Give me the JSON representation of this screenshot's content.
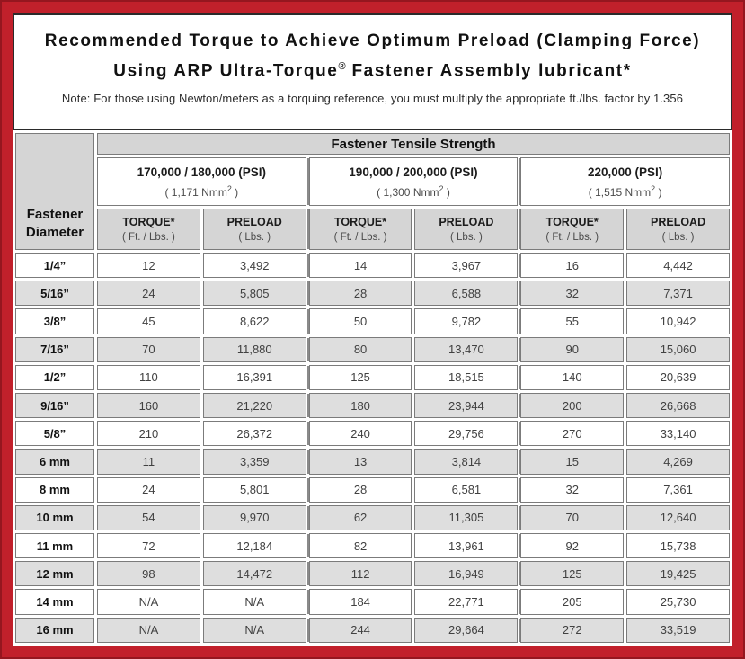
{
  "colors": {
    "frame_red": "#C1202B",
    "header_gray": "#D5D5D5",
    "row_alt_gray": "#DEDEDE",
    "cell_border_gray": "#7B7B7B",
    "title_text": "#111111"
  },
  "title": {
    "line1": "Recommended Torque to Achieve Optimum Preload (Clamping Force)",
    "line2_prefix": "Using ARP Ultra-Torque",
    "line2_reg": "®",
    "line2_suffix": " Fastener Assembly lubricant*",
    "note": "Note: For those using Newton/meters as a torquing reference, you must multiply the appropriate ft./lbs. factor by 1.356"
  },
  "table": {
    "tensile_header": "Fastener Tensile Strength",
    "diameter_header_line1": "Fastener",
    "diameter_header_line2": "Diameter",
    "groups": [
      {
        "psi": "170,000 / 180,000 (PSI)",
        "nmm_prefix": "( 1,171 Nmm",
        "nmm_sup": "2",
        "nmm_suffix": " )"
      },
      {
        "psi": "190,000 / 200,000 (PSI)",
        "nmm_prefix": "( 1,300 Nmm",
        "nmm_sup": "2",
        "nmm_suffix": " )"
      },
      {
        "psi": "220,000 (PSI)",
        "nmm_prefix": "( 1,515 Nmm",
        "nmm_sup": "2",
        "nmm_suffix": " )"
      }
    ],
    "col_headers": {
      "torque": "TORQUE*",
      "torque_unit": "( Ft. / Lbs. )",
      "preload": "PRELOAD",
      "preload_unit": "( Lbs. )"
    },
    "rows": [
      {
        "diameter": "1/4”",
        "values": [
          "12",
          "3,492",
          "14",
          "3,967",
          "16",
          "4,442"
        ]
      },
      {
        "diameter": "5/16”",
        "values": [
          "24",
          "5,805",
          "28",
          "6,588",
          "32",
          "7,371"
        ]
      },
      {
        "diameter": "3/8”",
        "values": [
          "45",
          "8,622",
          "50",
          "9,782",
          "55",
          "10,942"
        ]
      },
      {
        "diameter": "7/16”",
        "values": [
          "70",
          "11,880",
          "80",
          "13,470",
          "90",
          "15,060"
        ]
      },
      {
        "diameter": "1/2”",
        "values": [
          "110",
          "16,391",
          "125",
          "18,515",
          "140",
          "20,639"
        ]
      },
      {
        "diameter": "9/16”",
        "values": [
          "160",
          "21,220",
          "180",
          "23,944",
          "200",
          "26,668"
        ]
      },
      {
        "diameter": "5/8”",
        "values": [
          "210",
          "26,372",
          "240",
          "29,756",
          "270",
          "33,140"
        ]
      },
      {
        "diameter": "6 mm",
        "values": [
          "11",
          "3,359",
          "13",
          "3,814",
          "15",
          "4,269"
        ]
      },
      {
        "diameter": "8 mm",
        "values": [
          "24",
          "5,801",
          "28",
          "6,581",
          "32",
          "7,361"
        ]
      },
      {
        "diameter": "10 mm",
        "values": [
          "54",
          "9,970",
          "62",
          "11,305",
          "70",
          "12,640"
        ]
      },
      {
        "diameter": "11 mm",
        "values": [
          "72",
          "12,184",
          "82",
          "13,961",
          "92",
          "15,738"
        ]
      },
      {
        "diameter": "12 mm",
        "values": [
          "98",
          "14,472",
          "112",
          "16,949",
          "125",
          "19,425"
        ]
      },
      {
        "diameter": "14 mm",
        "values": [
          "N/A",
          "N/A",
          "184",
          "22,771",
          "205",
          "25,730"
        ]
      },
      {
        "diameter": "16 mm",
        "values": [
          "N/A",
          "N/A",
          "244",
          "29,664",
          "272",
          "33,519"
        ]
      }
    ]
  }
}
